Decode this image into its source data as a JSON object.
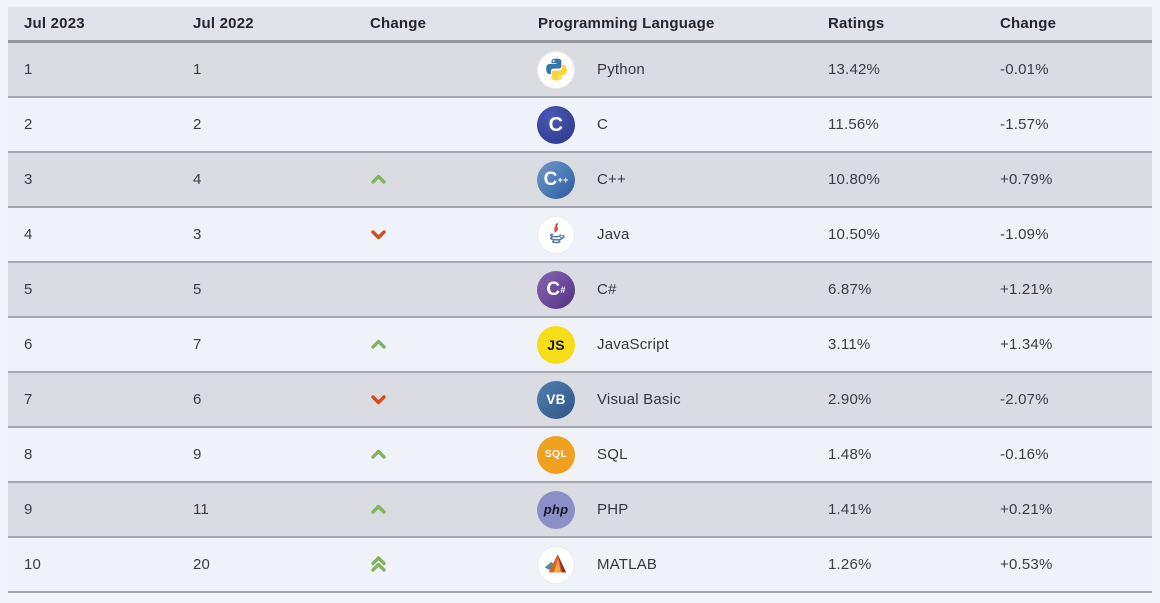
{
  "table": {
    "headers": [
      "Jul 2023",
      "Jul 2022",
      "Change",
      "Programming Language",
      "Ratings",
      "Change"
    ],
    "rows": [
      {
        "rank_2023": "1",
        "rank_2022": "1",
        "change": "none",
        "language": "Python",
        "icon": "python",
        "ratings": "13.42%",
        "ratings_change": "-0.01%"
      },
      {
        "rank_2023": "2",
        "rank_2022": "2",
        "change": "none",
        "language": "C",
        "icon": "c",
        "ratings": "11.56%",
        "ratings_change": "-1.57%"
      },
      {
        "rank_2023": "3",
        "rank_2022": "4",
        "change": "up",
        "language": "C++",
        "icon": "cpp",
        "ratings": "10.80%",
        "ratings_change": "+0.79%"
      },
      {
        "rank_2023": "4",
        "rank_2022": "3",
        "change": "down",
        "language": "Java",
        "icon": "java",
        "ratings": "10.50%",
        "ratings_change": "-1.09%"
      },
      {
        "rank_2023": "5",
        "rank_2022": "5",
        "change": "none",
        "language": "C#",
        "icon": "csharp",
        "ratings": "6.87%",
        "ratings_change": "+1.21%"
      },
      {
        "rank_2023": "6",
        "rank_2022": "7",
        "change": "up",
        "language": "JavaScript",
        "icon": "javascript",
        "ratings": "3.11%",
        "ratings_change": "+1.34%"
      },
      {
        "rank_2023": "7",
        "rank_2022": "6",
        "change": "down",
        "language": "Visual Basic",
        "icon": "visualbasic",
        "ratings": "2.90%",
        "ratings_change": "-2.07%"
      },
      {
        "rank_2023": "8",
        "rank_2022": "9",
        "change": "up",
        "language": "SQL",
        "icon": "sql",
        "ratings": "1.48%",
        "ratings_change": "-0.16%"
      },
      {
        "rank_2023": "9",
        "rank_2022": "11",
        "change": "up",
        "language": "PHP",
        "icon": "php",
        "ratings": "1.41%",
        "ratings_change": "+0.21%"
      },
      {
        "rank_2023": "10",
        "rank_2022": "20",
        "change": "up2",
        "language": "MATLAB",
        "icon": "matlab",
        "ratings": "1.26%",
        "ratings_change": "+0.53%"
      }
    ],
    "icons": {
      "python": {
        "name": "python-icon",
        "type": "svg"
      },
      "c": {
        "name": "c-icon",
        "text": "C"
      },
      "cpp": {
        "name": "cpp-icon",
        "text": "C",
        "sup": "++"
      },
      "java": {
        "name": "java-icon",
        "type": "svg"
      },
      "csharp": {
        "name": "csharp-icon",
        "text": "C",
        "sup": "#"
      },
      "javascript": {
        "name": "javascript-icon",
        "text": "JS"
      },
      "visualbasic": {
        "name": "visualbasic-icon",
        "text": "VB"
      },
      "sql": {
        "name": "sql-icon",
        "text": "SQL"
      },
      "php": {
        "name": "php-icon",
        "text": "php"
      },
      "matlab": {
        "name": "matlab-icon",
        "type": "svg"
      }
    },
    "colors": {
      "arrow_up": "#80b461",
      "arrow_down": "#d64a1e",
      "row_shade_bg": "#dbdce1",
      "row_light_bg": "#eff3f9",
      "header_bg": "#e2e3e8",
      "separator": "#a6a8ae",
      "page_bg": "#f1f4f9"
    }
  },
  "chart_data": {
    "type": "table",
    "columns": [
      "Jul 2023",
      "Jul 2022",
      "Change",
      "Programming Language",
      "Ratings",
      "Change"
    ],
    "rows": [
      [
        "1",
        "1",
        "",
        "Python",
        "13.42%",
        "-0.01%"
      ],
      [
        "2",
        "2",
        "",
        "C",
        "11.56%",
        "-1.57%"
      ],
      [
        "3",
        "4",
        "up",
        "C++",
        "10.80%",
        "+0.79%"
      ],
      [
        "4",
        "3",
        "down",
        "Java",
        "10.50%",
        "-1.09%"
      ],
      [
        "5",
        "5",
        "",
        "C#",
        "6.87%",
        "+1.21%"
      ],
      [
        "6",
        "7",
        "up",
        "JavaScript",
        "3.11%",
        "+1.34%"
      ],
      [
        "7",
        "6",
        "down",
        "Visual Basic",
        "2.90%",
        "-2.07%"
      ],
      [
        "8",
        "9",
        "up",
        "SQL",
        "1.48%",
        "-0.16%"
      ],
      [
        "9",
        "11",
        "up",
        "PHP",
        "1.41%",
        "+0.21%"
      ],
      [
        "10",
        "20",
        "up-fast",
        "MATLAB",
        "1.26%",
        "+0.53%"
      ]
    ]
  }
}
